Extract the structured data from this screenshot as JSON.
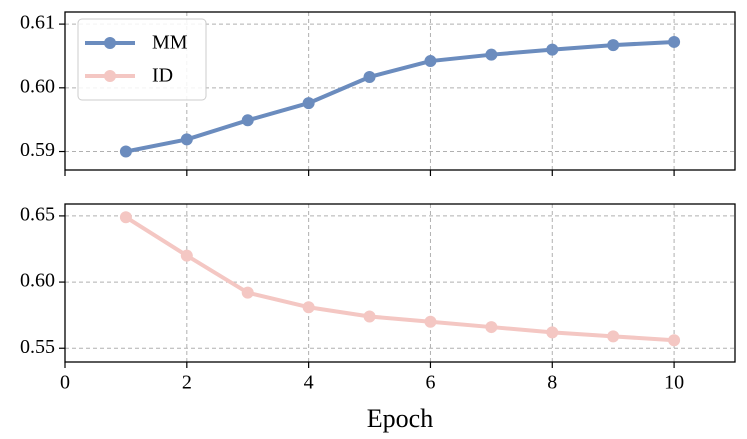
{
  "chart_data": [
    {
      "type": "line",
      "x": [
        1,
        2,
        3,
        4,
        5,
        6,
        7,
        8,
        9,
        10
      ],
      "series": [
        {
          "name": "MM",
          "color": "#6b8cbe",
          "values": [
            0.59,
            0.5919,
            0.5949,
            0.5976,
            0.6017,
            0.6042,
            0.6052,
            0.606,
            0.6067,
            0.6072
          ]
        }
      ],
      "xlim": [
        0,
        11
      ],
      "ylim": [
        0.5871,
        0.6119
      ],
      "yticks": [
        0.59,
        {
          "value": 0.6,
          "label": "0.60"
        },
        0.61
      ],
      "grid": true,
      "legend": "upper left"
    },
    {
      "type": "line",
      "x": [
        1,
        2,
        3,
        4,
        5,
        6,
        7,
        8,
        9,
        10
      ],
      "series": [
        {
          "name": "ID",
          "color": "#f4c7c3",
          "values": [
            0.649,
            0.62,
            0.592,
            0.581,
            0.574,
            0.57,
            0.566,
            0.562,
            0.559,
            0.556
          ]
        }
      ],
      "xlim": [
        0,
        11
      ],
      "ylim": [
        0.5396,
        0.659
      ],
      "xticks": [
        0,
        2,
        4,
        6,
        8,
        10
      ],
      "yticks": [
        0.55,
        {
          "value": 0.6,
          "label": "0.60"
        },
        0.65
      ],
      "x_label": "Epoch",
      "grid": true
    }
  ]
}
